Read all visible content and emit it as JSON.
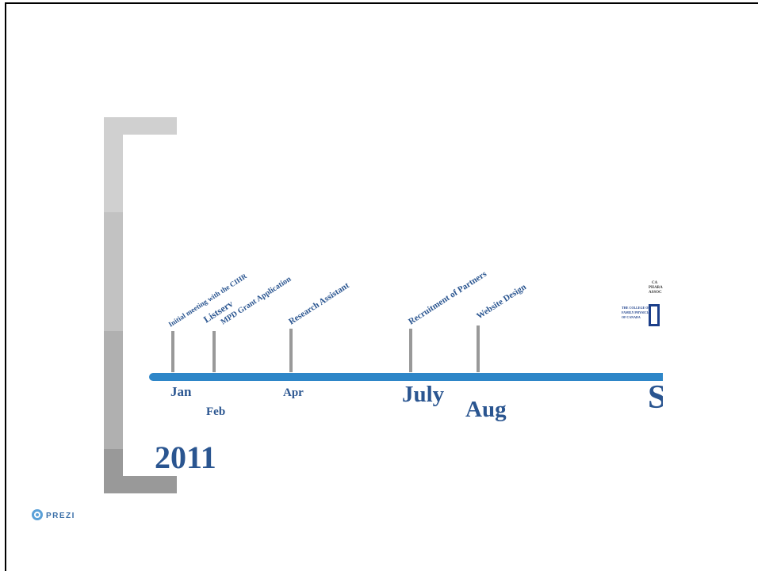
{
  "timeline": {
    "year": "2011",
    "events": [
      "Initial meeting with the CIHR",
      "Listserv",
      "MPD Grant Application",
      "Research Assistant",
      "Recruitment of Partners",
      "Website Design"
    ],
    "months": [
      "Jan",
      "Feb",
      "Apr",
      "July",
      "Aug",
      "S"
    ],
    "logos": {
      "pharmacists": [
        "CA",
        "PHARA",
        "ASSOC"
      ],
      "college": [
        "THE COLLEGE OF",
        "FAMILY PHYSICIANS",
        "OF CANADA"
      ]
    }
  },
  "footer": {
    "brand": "PREZI"
  }
}
